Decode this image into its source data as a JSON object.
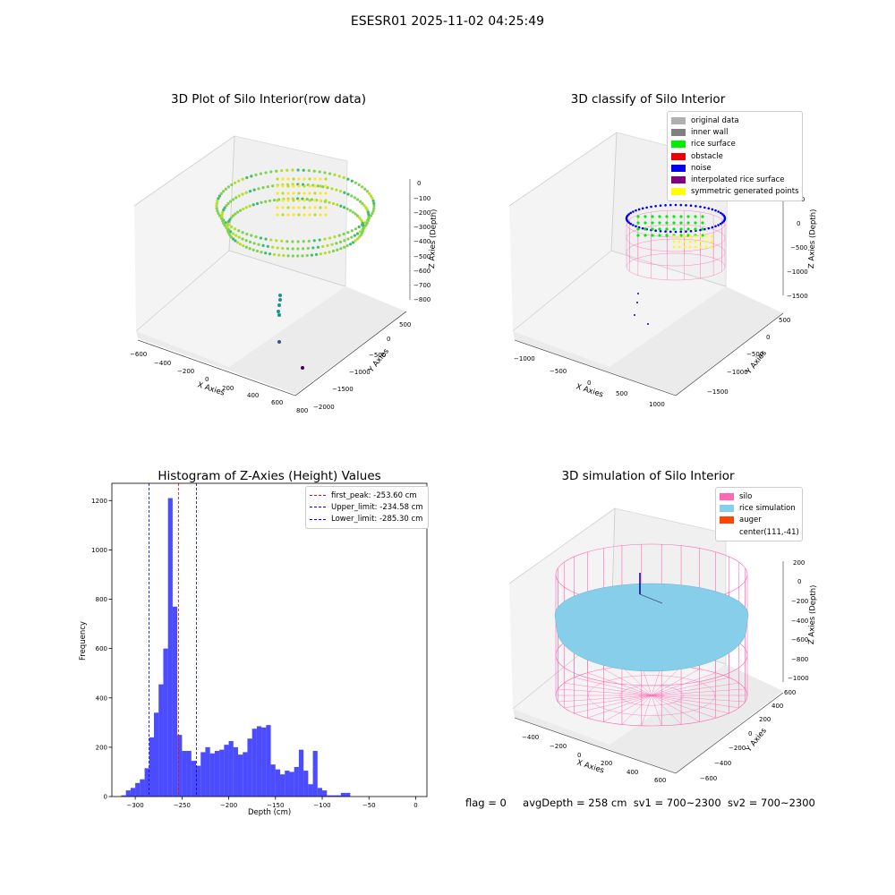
{
  "suptitle": "ESESR01 2025-11-02 04:25:49",
  "panels": {
    "raw": {
      "title": "3D Plot of Silo Interior(row data)",
      "xlabel": "X Axies",
      "ylabel": "Y Axies",
      "zlabel": "Z Axies (Depth)",
      "xticks": [
        "−600",
        "−400",
        "−200",
        "0",
        "200",
        "400",
        "600",
        "800"
      ],
      "yticks": [
        "500",
        "0",
        "−500",
        "−1000",
        "−1500",
        "−2000"
      ],
      "zticks": [
        "0",
        "−100",
        "−200",
        "−300",
        "−400",
        "−500",
        "−600",
        "−700",
        "−800"
      ]
    },
    "classify": {
      "title": "3D classify of Silo Interior",
      "xlabel": "X Axies",
      "ylabel": "Y Axies",
      "zlabel": "Z Axies (Depth)",
      "xticks": [
        "−1000",
        "−500",
        "0",
        "500",
        "1000"
      ],
      "yticks": [
        "500",
        "0",
        "−500",
        "−1000",
        "−1500"
      ],
      "zticks": [
        "500",
        "0",
        "−500",
        "−1000",
        "−1500"
      ],
      "legend": [
        {
          "label": "original data",
          "color": "#b0b0b0"
        },
        {
          "label": "inner wall",
          "color": "#808080"
        },
        {
          "label": "rice surface",
          "color": "#00ee00"
        },
        {
          "label": "obstacle",
          "color": "#ee0000"
        },
        {
          "label": "noise",
          "color": "#0000ee"
        },
        {
          "label": "interpolated rice surface",
          "color": "#800080"
        },
        {
          "label": "symmetric generated points",
          "color": "#ffff00"
        }
      ]
    },
    "simulation": {
      "title": "3D simulation of Silo Interior",
      "xlabel": "X Axies",
      "ylabel": "Y Axies",
      "zlabel": "Z Axies (Depth)",
      "xticks": [
        "−400",
        "−200",
        "0",
        "200",
        "400",
        "600"
      ],
      "yticks": [
        "600",
        "400",
        "200",
        "0",
        "−200",
        "−400",
        "−600"
      ],
      "zticks": [
        "200",
        "0",
        "−200",
        "−400",
        "−600",
        "−800",
        "−1000"
      ],
      "legend": [
        {
          "label": "silo",
          "color": "#ff69b4"
        },
        {
          "label": "rice simulation",
          "color": "#87ceeb"
        },
        {
          "label": "auger",
          "color": "#ff4500"
        },
        {
          "label": "center(111,-41)",
          "color": ""
        }
      ]
    }
  },
  "chart_data": {
    "type": "bar",
    "title": "Histogram of Z-Axies (Height) Values",
    "xlabel": "Depth (cm)",
    "ylabel": "Frequency",
    "xlim": [
      -325,
      12
    ],
    "ylim": [
      0,
      1270
    ],
    "xticks": [
      -300,
      -250,
      -200,
      -150,
      -100,
      -50,
      0
    ],
    "yticks": [
      0,
      200,
      400,
      600,
      800,
      1000,
      1200
    ],
    "bar_color": "#0000ff",
    "bin_start": -315,
    "bin_width": 5,
    "values": [
      5,
      25,
      35,
      55,
      70,
      115,
      240,
      340,
      455,
      600,
      1210,
      770,
      250,
      185,
      185,
      145,
      125,
      180,
      200,
      175,
      185,
      190,
      210,
      225,
      200,
      170,
      180,
      235,
      275,
      285,
      280,
      290,
      130,
      110,
      90,
      105,
      100,
      120,
      190,
      105,
      50,
      185,
      35,
      25,
      5,
      5,
      5,
      15,
      15
    ],
    "vlines": [
      {
        "label": "first_peak: -253.60 cm",
        "x": -253.6,
        "color": "#ff0000"
      },
      {
        "label": "Upper_limit: -234.58 cm",
        "x": -234.58,
        "color": "#0000ff"
      },
      {
        "label": "Lower_limit: -285.30 cm",
        "x": -285.3,
        "color": "#0000ff"
      }
    ]
  },
  "footer": {
    "flag": "flag = 0",
    "avg": "avgDepth = 258 cm",
    "sv1": "sv1 = 700~2300",
    "sv2": "sv2 = 700~2300"
  }
}
